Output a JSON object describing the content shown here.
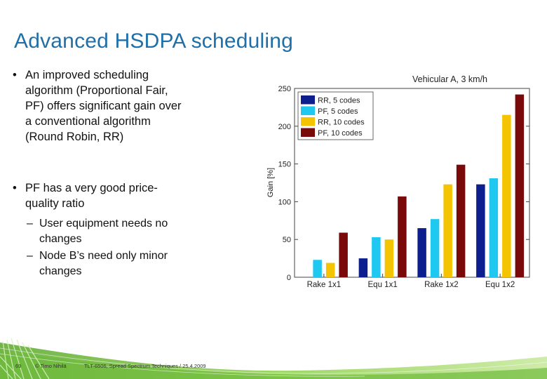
{
  "slide": {
    "title": "Advanced HSDPA scheduling",
    "bullets": [
      {
        "marker": "•",
        "lines": [
          "An improved scheduling",
          "algorithm (Proportional Fair,",
          "PF) offers significant gain over",
          "a conventional algorithm",
          "(Round Robin, RR)"
        ]
      },
      {
        "marker": "•",
        "lines": [
          "PF has a very good price-",
          "quality ratio"
        ]
      }
    ],
    "subbullets": [
      {
        "marker": "–",
        "lines": [
          "User equipment needs no",
          "changes"
        ]
      },
      {
        "marker": "–",
        "lines": [
          "Node B’s need only minor",
          "changes"
        ]
      }
    ]
  },
  "footer": {
    "page_number": "69",
    "author": "© Timo Nihilä",
    "course": "TLT-6506, Spread Spectrum Techniques / 25.4.2009"
  },
  "colors": {
    "title": "#1f6fa8",
    "series": [
      "#0d1f8f",
      "#1ec8f0",
      "#f5c400",
      "#7a0a0a"
    ],
    "footer_green": "#7cc242"
  },
  "chart_data": {
    "type": "bar",
    "title": "Vehicular A, 3 km/h",
    "ylabel": "Gain [%]",
    "xlabel": "",
    "ylim": [
      0,
      250
    ],
    "yticks": [
      0,
      50,
      100,
      150,
      200,
      250
    ],
    "categories": [
      "Rake 1x1",
      "Equ 1x1",
      "Rake 1x2",
      "Equ 1x2"
    ],
    "series": [
      {
        "name": "RR, 5 codes",
        "values": [
          0,
          25,
          65,
          123
        ]
      },
      {
        "name": "PF, 5 codes",
        "values": [
          23,
          53,
          77,
          131
        ]
      },
      {
        "name": "RR, 10 codes",
        "values": [
          19,
          50,
          123,
          215
        ]
      },
      {
        "name": "PF, 10 codes",
        "values": [
          59,
          107,
          149,
          242
        ]
      }
    ],
    "legend": "top-left",
    "grid": false
  }
}
